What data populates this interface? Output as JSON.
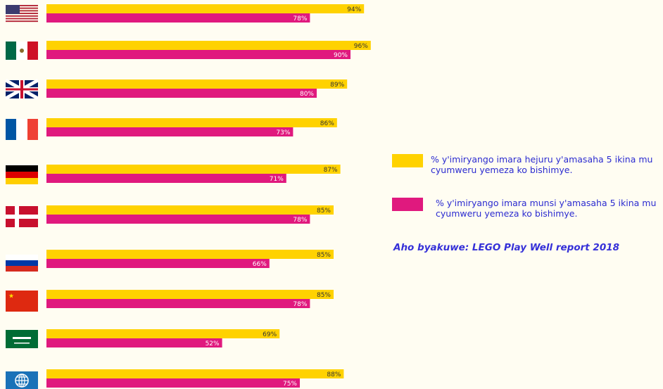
{
  "chart_data": {
    "type": "bar",
    "categories": [
      null,
      null,
      null,
      null,
      null,
      null,
      null,
      null,
      null,
      null
    ],
    "series": [
      {
        "name": "% y'imiryango imara hejuru y'amasaha 5 ikina mu cyumweru yemeza ko bishimye.",
        "color": "#ffd200",
        "values": [
          94,
          96,
          89,
          86,
          87,
          85,
          85,
          85,
          69,
          88
        ],
        "value_labels": [
          "94%",
          "96%",
          "89%",
          "86%",
          "87%",
          "85%",
          "85%",
          "85%",
          "69%",
          "88%"
        ]
      },
      {
        "name": "% y'imiryango imara munsi y'amasaha 5 ikina mu cyumweru yemeza ko bishimye.",
        "color": "#e0197e",
        "values": [
          78,
          90,
          80,
          73,
          71,
          78,
          66,
          78,
          52,
          75
        ],
        "value_labels": [
          "78%",
          "90%",
          "80%",
          "73%",
          "71%",
          "78%",
          "66%",
          "78%",
          "52%",
          "75%"
        ]
      }
    ],
    "annotation": "Aho byakuwe: LEGO Play Well report 2018"
  }
}
